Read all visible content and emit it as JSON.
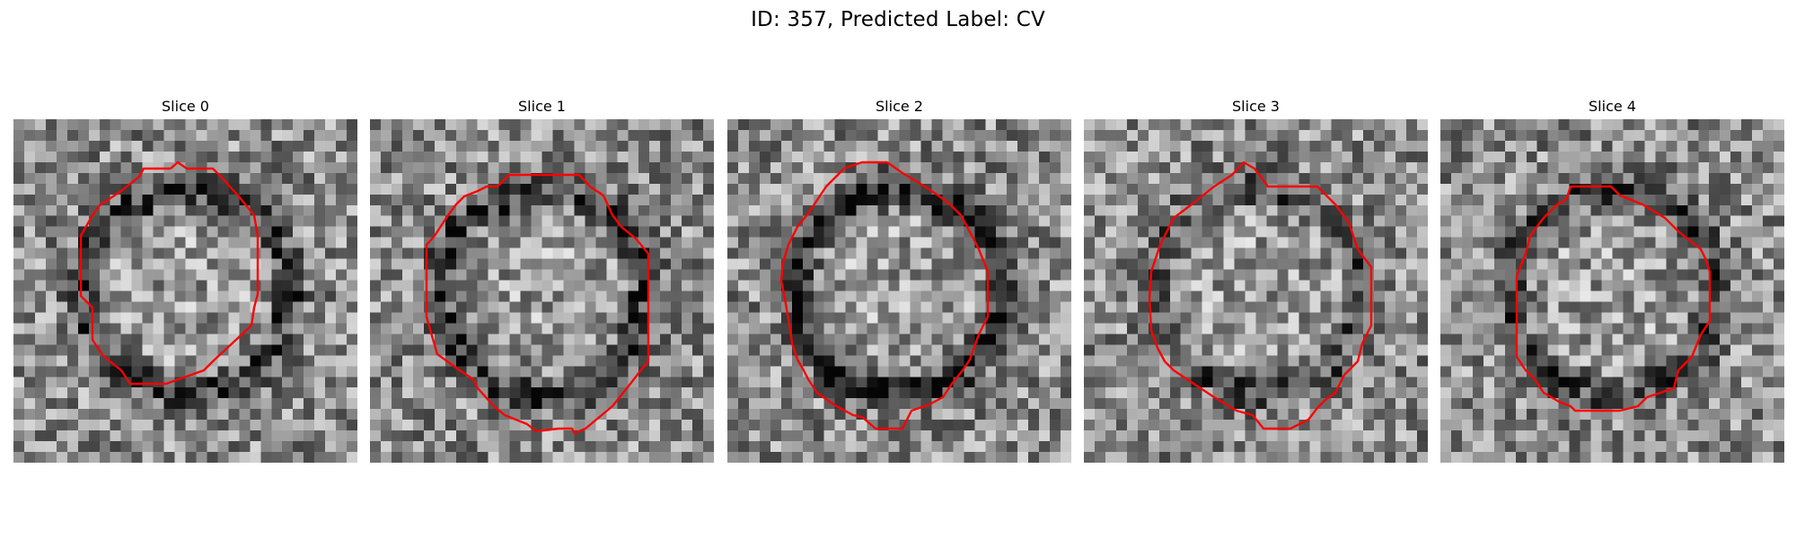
{
  "figure": {
    "title": "ID: 357, Predicted Label: CV"
  },
  "panels": [
    {
      "title": "Slice 0",
      "seed": 11,
      "darkRing": 0.3,
      "contour_color": "#ff0000"
    },
    {
      "title": "Slice 1",
      "seed": 23,
      "darkRing": 0.35,
      "contour_color": "#ff0000"
    },
    {
      "title": "Slice 2",
      "seed": 37,
      "darkRing": 0.4,
      "contour_color": "#ff0000"
    },
    {
      "title": "Slice 3",
      "seed": 41,
      "darkRing": 0.25,
      "contour_color": "#ff0000"
    },
    {
      "title": "Slice 4",
      "seed": 59,
      "darkRing": 0.3,
      "contour_color": "#ff0000"
    }
  ],
  "colors": {
    "contour": "#ff0000",
    "background": "#ffffff",
    "text": "#000000"
  }
}
